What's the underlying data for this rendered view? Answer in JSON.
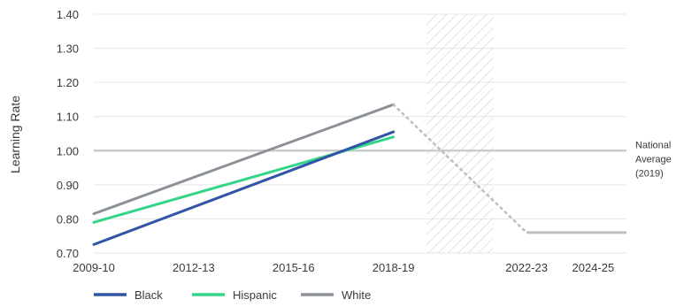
{
  "chart_data": {
    "type": "line",
    "title": "",
    "ylabel": "Learning Rate",
    "xlabel": "",
    "ylim": [
      0.7,
      1.4
    ],
    "xlim": [
      2009,
      2025
    ],
    "y_ticks": [
      0.7,
      0.8,
      0.9,
      1.0,
      1.1,
      1.2,
      1.3,
      1.4
    ],
    "y_tick_labels": [
      "0.70",
      "0.80",
      "0.90",
      "1.00",
      "1.10",
      "1.20",
      "1.30",
      "1.40"
    ],
    "x_ticks": [
      2009,
      2012,
      2015,
      2018,
      2022,
      2024
    ],
    "x_tick_labels": [
      "2009-10",
      "2012-13",
      "2015-16",
      "2018-19",
      "2022-23",
      "2024-25"
    ],
    "grid": true,
    "legend_position": "bottom-left",
    "reference_line": {
      "value": 1.0,
      "label_lines": [
        "National",
        "Average",
        "(2019)"
      ],
      "color": "#cccccc"
    },
    "shaded_region": {
      "x_start": 2019,
      "x_end": 2021,
      "pattern": "diagonal-hatch",
      "color": "#dddddd"
    },
    "series": [
      {
        "name": "Black",
        "color": "#2f55a4",
        "x": [
          2009,
          2018
        ],
        "y": [
          0.725,
          1.055
        ]
      },
      {
        "name": "Hispanic",
        "color": "#34d58a",
        "x": [
          2009,
          2018
        ],
        "y": [
          0.79,
          1.04
        ]
      },
      {
        "name": "White",
        "color": "#8c9199",
        "x": [
          2009,
          2018
        ],
        "y": [
          0.815,
          1.135
        ]
      }
    ],
    "projection": {
      "color": "#bbbfc4",
      "dotted": {
        "x": [
          2018,
          2022
        ],
        "y": [
          1.135,
          0.76
        ]
      },
      "solid": {
        "x": [
          2022,
          2025
        ],
        "y": [
          0.76,
          0.76
        ]
      }
    }
  }
}
